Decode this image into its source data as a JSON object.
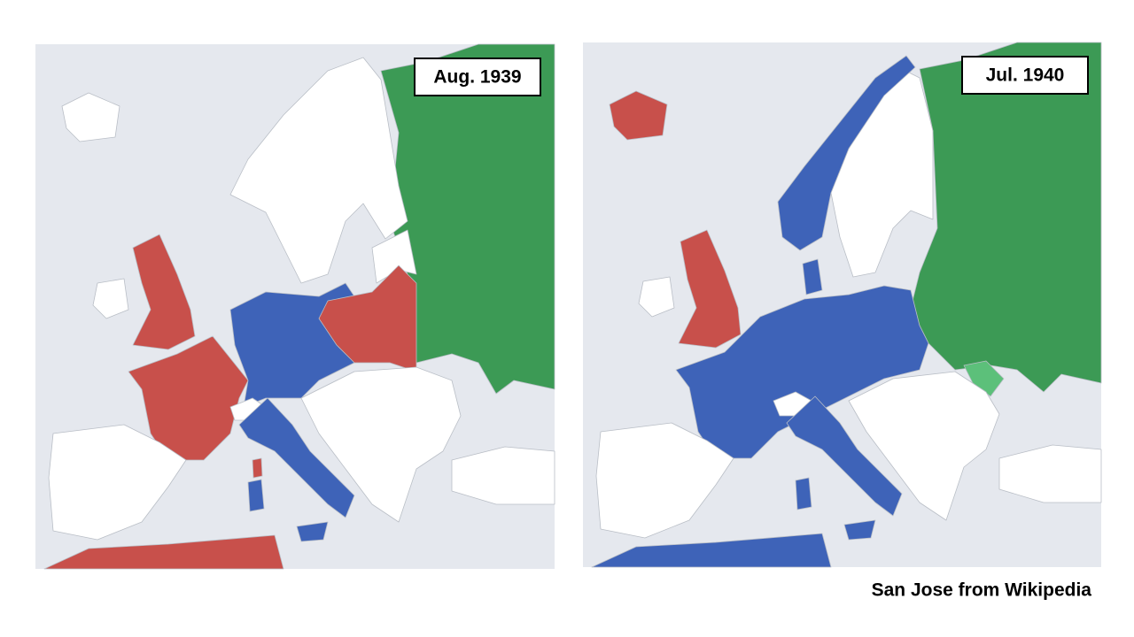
{
  "maps": [
    {
      "date": "Aug. 1939"
    },
    {
      "date": "Jul. 1940"
    }
  ],
  "caption": "San Jose from Wikipedia"
}
